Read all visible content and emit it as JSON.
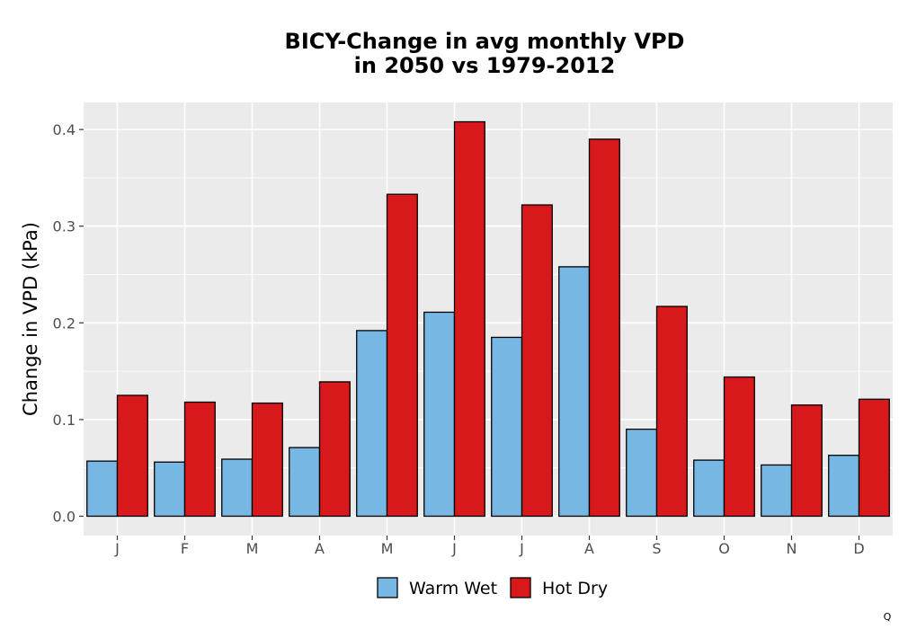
{
  "chart_data": {
    "type": "bar",
    "title_line1": "BICY-Change in avg monthly VPD",
    "title_line2": "in 2050 vs 1979-2012",
    "xlabel": "",
    "ylabel": "Change in VPD (kPa)",
    "categories": [
      "J",
      "F",
      "M",
      "A",
      "M",
      "J",
      "J",
      "A",
      "S",
      "O",
      "N",
      "D"
    ],
    "series": [
      {
        "name": "Warm Wet",
        "color": "#77B7E3",
        "values": [
          0.057,
          0.056,
          0.059,
          0.071,
          0.192,
          0.211,
          0.185,
          0.258,
          0.09,
          0.058,
          0.053,
          0.063
        ]
      },
      {
        "name": "Hot Dry",
        "color": "#D7191C",
        "values": [
          0.125,
          0.118,
          0.117,
          0.139,
          0.333,
          0.408,
          0.322,
          0.39,
          0.217,
          0.144,
          0.115,
          0.121
        ]
      }
    ],
    "ylim": [
      -0.02,
      0.428
    ],
    "yticks": [
      0.0,
      0.1,
      0.2,
      0.3,
      0.4
    ],
    "ytick_labels": [
      "0.0",
      "0.1",
      "0.2",
      "0.3",
      "0.4"
    ],
    "grid": true,
    "legend_position": "bottom",
    "panel_background": "#EBEBEB",
    "corner_mark": "Q"
  }
}
